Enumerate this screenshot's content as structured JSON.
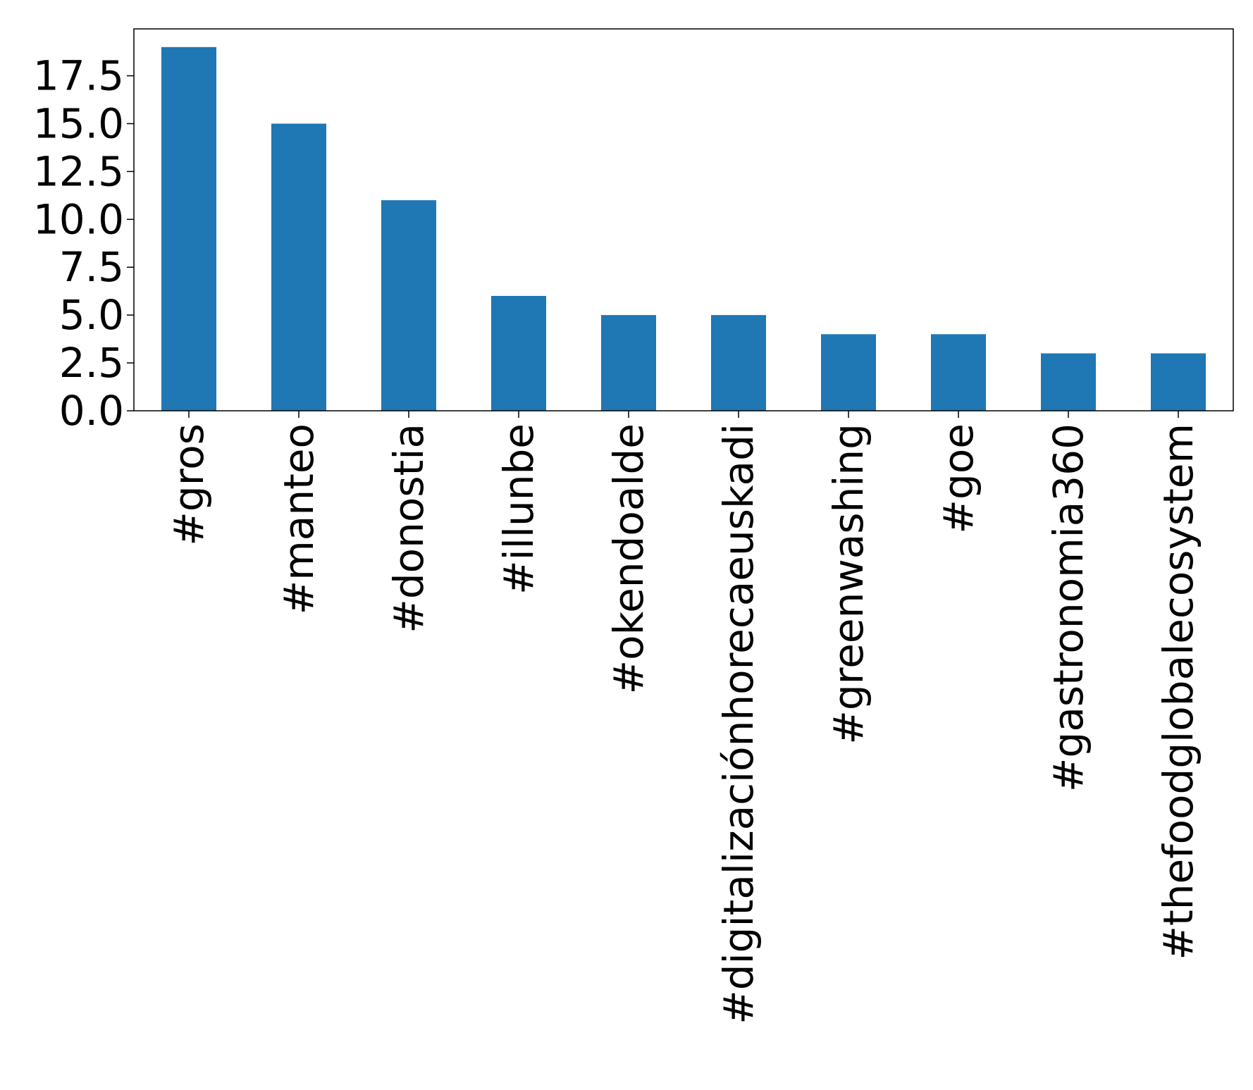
{
  "chart_data": {
    "type": "bar",
    "categories": [
      "#gros",
      "#manteo",
      "#donostia",
      "#illunbe",
      "#okendoalde",
      "#digitalizaciónhorecaeuskadi",
      "#greenwashing",
      "#goe",
      "#gastronomia360",
      "#thefoodglobalecosystem"
    ],
    "values": [
      19,
      15,
      11,
      6,
      5,
      5,
      4,
      4,
      3,
      3
    ],
    "yticks": [
      0.0,
      2.5,
      5.0,
      7.5,
      10.0,
      12.5,
      15.0,
      17.5
    ],
    "ytick_labels": [
      "0.0",
      "2.5",
      "5.0",
      "7.5",
      "10.0",
      "12.5",
      "15.0",
      "17.5"
    ],
    "ylim": [
      0,
      19.95
    ],
    "bar_color": "#1f77b4",
    "title": "",
    "xlabel": "",
    "ylabel": "",
    "grid": false,
    "legend": "none"
  }
}
